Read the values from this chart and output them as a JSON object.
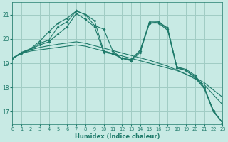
{
  "xlabel": "Humidex (Indice chaleur)",
  "background_color": "#c8eae4",
  "grid_color": "#a0ccc4",
  "line_color": "#1e7a6a",
  "xlim": [
    0,
    23
  ],
  "ylim": [
    16.5,
    21.5
  ],
  "yticks": [
    17,
    18,
    19,
    20,
    21
  ],
  "xticks": [
    0,
    1,
    2,
    3,
    4,
    5,
    6,
    7,
    8,
    9,
    10,
    11,
    12,
    13,
    14,
    15,
    16,
    17,
    18,
    19,
    20,
    21,
    22,
    23
  ],
  "series_no_marker": [
    [
      19.2,
      19.4,
      19.5,
      19.55,
      19.6,
      19.65,
      19.7,
      19.75,
      19.7,
      19.6,
      19.5,
      19.4,
      19.3,
      19.2,
      19.1,
      19.0,
      18.9,
      18.8,
      18.7,
      18.55,
      18.4,
      18.2,
      17.9,
      17.6
    ],
    [
      19.2,
      19.4,
      19.55,
      19.65,
      19.72,
      19.78,
      19.83,
      19.88,
      19.82,
      19.72,
      19.62,
      19.52,
      19.42,
      19.32,
      19.22,
      19.12,
      19.0,
      18.88,
      18.72,
      18.55,
      18.35,
      18.12,
      17.7,
      17.3
    ]
  ],
  "series_with_marker": [
    [
      19.2,
      19.45,
      19.6,
      19.9,
      20.3,
      20.65,
      20.85,
      21.15,
      21.0,
      20.75,
      19.5,
      19.4,
      19.2,
      19.15,
      19.55,
      20.7,
      20.7,
      20.45,
      18.85,
      18.75,
      18.5,
      18.0,
      17.05,
      16.55
    ],
    [
      19.2,
      19.42,
      19.58,
      19.82,
      19.95,
      20.5,
      20.7,
      21.15,
      21.0,
      20.55,
      20.4,
      19.5,
      19.2,
      19.15,
      19.5,
      20.65,
      20.7,
      20.4,
      18.85,
      18.7,
      18.45,
      18.0,
      17.05,
      16.55
    ],
    [
      19.2,
      19.42,
      19.58,
      19.75,
      19.88,
      20.2,
      20.5,
      21.05,
      20.8,
      20.5,
      19.45,
      19.38,
      19.2,
      19.1,
      19.45,
      20.65,
      20.65,
      20.35,
      18.8,
      18.7,
      18.4,
      17.95,
      17.0,
      16.55
    ]
  ]
}
